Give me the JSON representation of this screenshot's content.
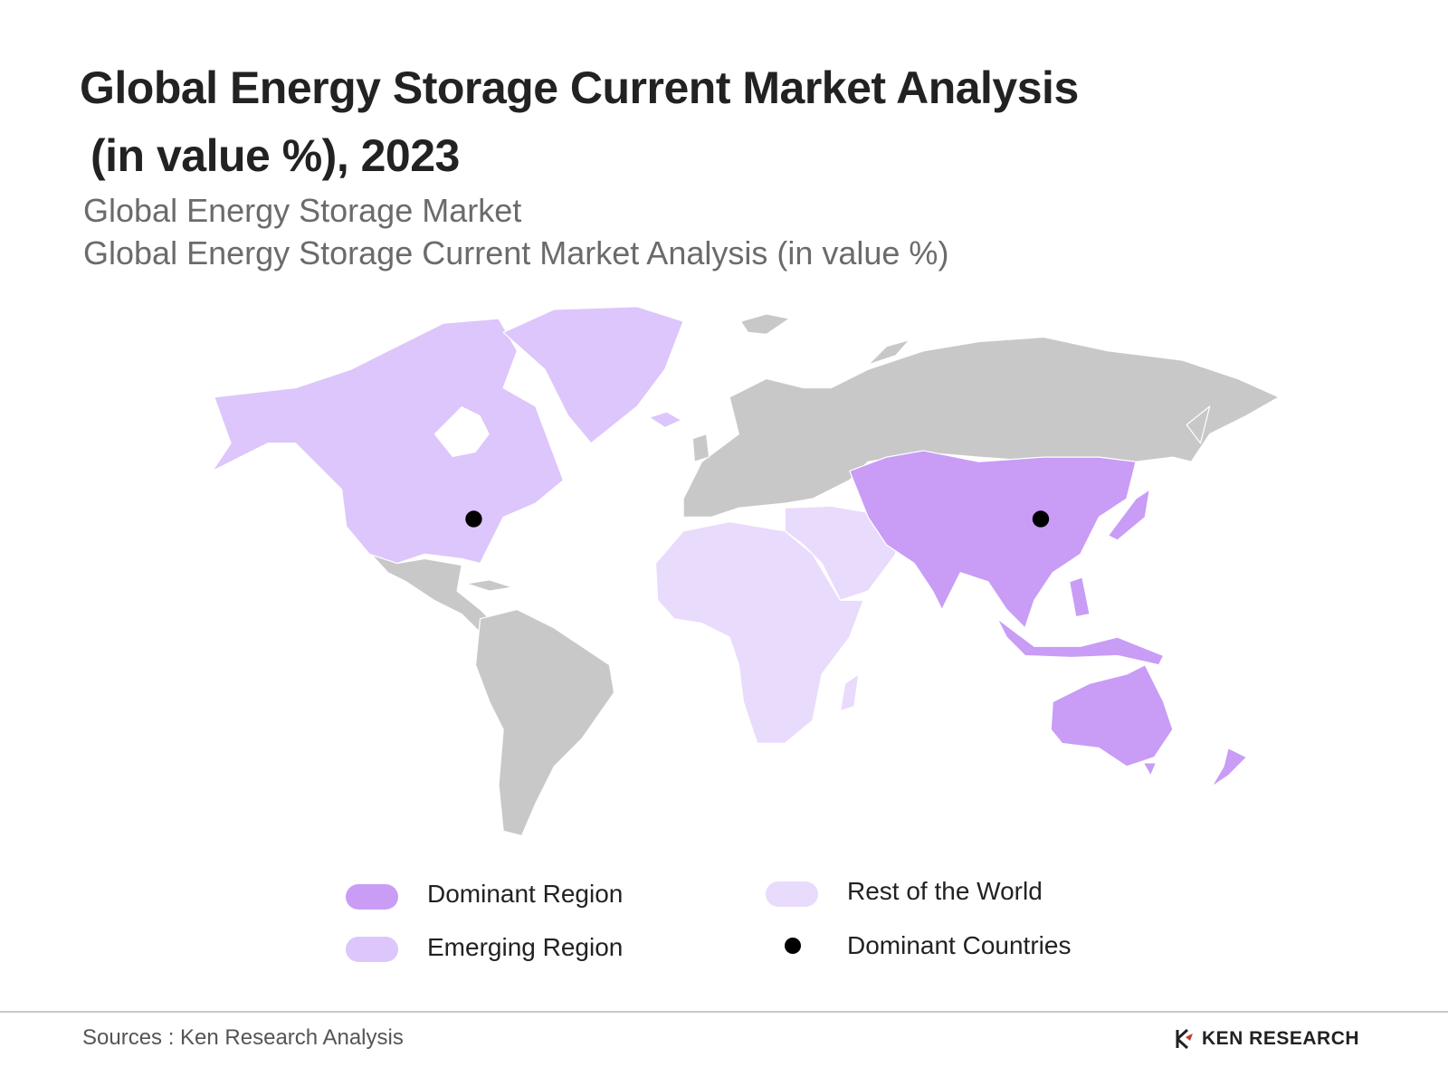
{
  "header": {
    "title_lines": [
      "Global Energy Storage Current Market Analysis",
      "(in value %), 2023"
    ],
    "subtitles": [
      "Global Energy Storage Market",
      "Global Energy Storage Current Market Analysis (in value %)"
    ]
  },
  "legend": {
    "items": [
      {
        "label": "Dominant Region",
        "color": "#c99cf6"
      },
      {
        "label": "Emerging Region",
        "color": "#dcc6fb"
      },
      {
        "label": "Rest of the World",
        "color": "#e9dbfc"
      },
      {
        "label": "Dominant Countries",
        "color": "#000000"
      }
    ]
  },
  "footer": {
    "source": "Sources : Ken Research Analysis",
    "logo": "KEN RESEARCH"
  }
}
